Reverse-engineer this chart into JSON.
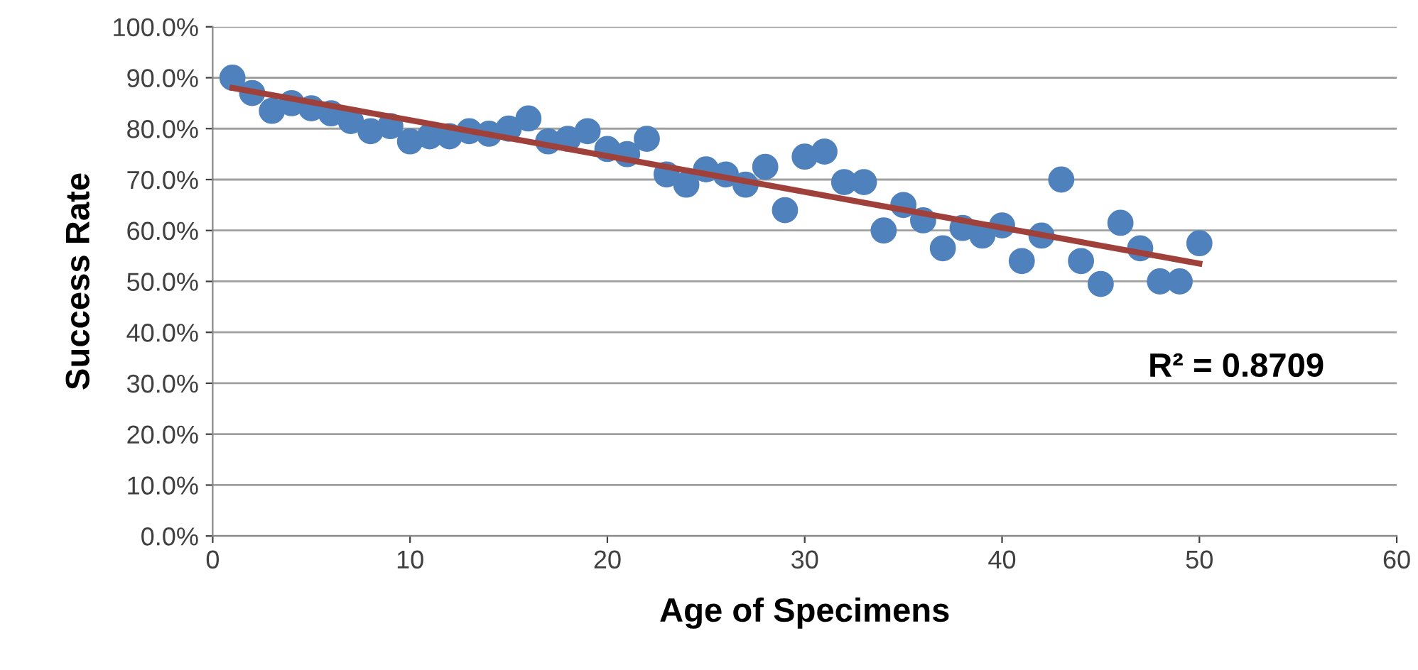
{
  "chart_data": {
    "type": "scatter",
    "xlabel": "Age of Specimens",
    "ylabel": "Success Rate",
    "series": [
      {
        "marker": "circle",
        "color": "#4f81bd",
        "x": [
          1,
          2,
          3,
          4,
          5,
          6,
          7,
          8,
          9,
          10,
          11,
          12,
          13,
          14,
          15,
          16,
          17,
          18,
          19,
          20,
          21,
          22,
          23,
          24,
          25,
          26,
          27,
          28,
          29,
          30,
          31,
          32,
          33,
          34,
          35,
          36,
          37,
          38,
          39,
          40,
          41,
          42,
          43,
          44,
          45,
          46,
          47,
          48,
          49,
          50
        ],
        "values": [
          90,
          87,
          83.5,
          85,
          84,
          83,
          81.5,
          79.5,
          80.5,
          77.5,
          78.5,
          78.5,
          79.5,
          79,
          80,
          82,
          77.5,
          78,
          79.5,
          76,
          75,
          78,
          71,
          69,
          72,
          71,
          69,
          72.5,
          64,
          74.5,
          75.5,
          69.5,
          69.5,
          60,
          65,
          62,
          56.5,
          60.5,
          59,
          61,
          54,
          59,
          70,
          54,
          49.5,
          61.5,
          56.5,
          50,
          50,
          57.5
        ]
      },
      {
        "type": "line",
        "color": "#a0403a",
        "x": [
          1,
          50
        ],
        "values": [
          88,
          53.5
        ]
      }
    ],
    "annotations": [
      "R² = 0.8709"
    ],
    "xlim": [
      0,
      60
    ],
    "xticks": [
      0,
      10,
      20,
      30,
      40,
      50,
      60
    ],
    "ylim": [
      0,
      100
    ],
    "yticks": [
      {
        "value": 0,
        "label": "0.0%"
      },
      {
        "value": 10,
        "label": "10.0%"
      },
      {
        "value": 20,
        "label": "20.0%"
      },
      {
        "value": 30,
        "label": "30.0%"
      },
      {
        "value": 40,
        "label": "40.0%"
      },
      {
        "value": 50,
        "label": "50.0%"
      },
      {
        "value": 60,
        "label": "60.0%"
      },
      {
        "value": 70,
        "label": "70.0%"
      },
      {
        "value": 80,
        "label": "80.0%"
      },
      {
        "value": 90,
        "label": "90.0%"
      },
      {
        "value": 100,
        "label": "100.0%"
      }
    ],
    "grid": "y"
  }
}
